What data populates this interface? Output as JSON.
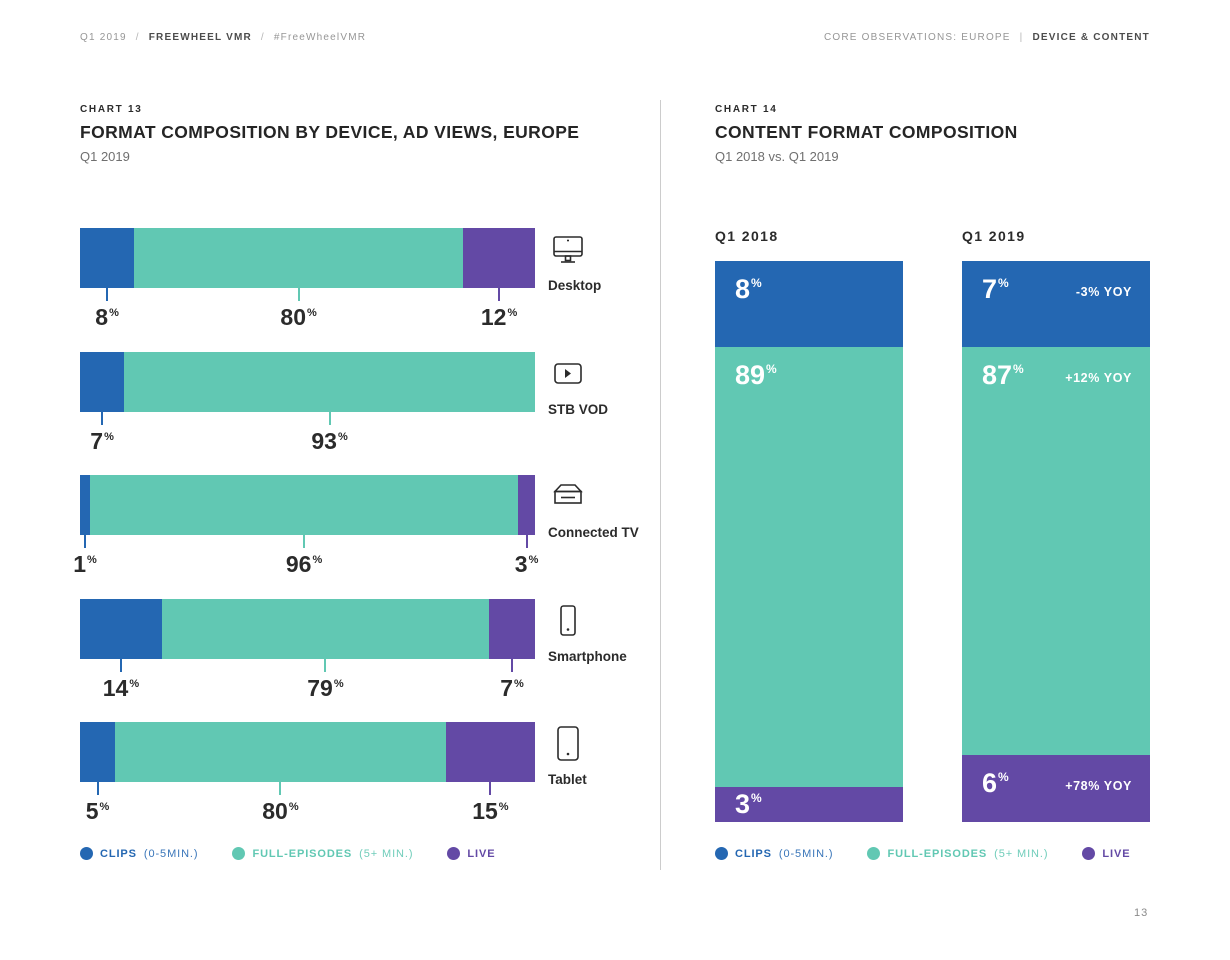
{
  "page": {
    "header_left": {
      "prefix": "Q1 2019",
      "sep1": "/",
      "brand": "FREEWHEEL VMR",
      "sep2": "/",
      "hashtag": "#FreeWheelVMR"
    },
    "header_right": {
      "section": "CORE OBSERVATIONS: EUROPE",
      "divider": "|",
      "subsection": "DEVICE & CONTENT"
    },
    "page_number": "13"
  },
  "colors": {
    "clips": "#2467b2",
    "full_episodes": "#61c8b3",
    "live": "#6349a5",
    "text_dark": "#2b2b2b",
    "text_gray": "#6f6f6f",
    "divider": "#cccccc"
  },
  "legend": [
    {
      "name": "clips",
      "label": "CLIPS",
      "detail": "(0-5MIN.)",
      "color": "#2467b2"
    },
    {
      "name": "full-episodes",
      "label": "FULL-EPISODES",
      "detail": "(5+ MIN.)",
      "color": "#61c8b3"
    },
    {
      "name": "live",
      "label": "LIVE",
      "detail": "",
      "color": "#6349a5"
    }
  ],
  "chart13": {
    "chart_label": "CHART 13",
    "title": "FORMAT COMPOSITION BY DEVICE, AD VIEWS, EUROPE",
    "subtitle": "Q1 2019",
    "unit": "%",
    "rows": [
      {
        "device": "Desktop",
        "icon": "desktop-icon",
        "segments": [
          {
            "series": "clips",
            "value": 8,
            "display_pct": 11.9
          },
          {
            "series": "full_episodes",
            "value": 80,
            "display_pct": 72.3
          },
          {
            "series": "live",
            "value": 12,
            "display_pct": 15.8
          }
        ]
      },
      {
        "device": "STB VOD",
        "icon": "stb-vod-icon",
        "segments": [
          {
            "series": "clips",
            "value": 7,
            "display_pct": 9.7
          },
          {
            "series": "full_episodes",
            "value": 93,
            "display_pct": 90.3
          }
        ]
      },
      {
        "device": "Connected TV",
        "icon": "connected-tv-icon",
        "segments": [
          {
            "series": "clips",
            "value": 1,
            "display_pct": 2.2
          },
          {
            "series": "full_episodes",
            "value": 96,
            "display_pct": 94.1
          },
          {
            "series": "live",
            "value": 3,
            "display_pct": 3.7
          }
        ]
      },
      {
        "device": "Smartphone",
        "icon": "smartphone-icon",
        "segments": [
          {
            "series": "clips",
            "value": 14,
            "display_pct": 18.0
          },
          {
            "series": "full_episodes",
            "value": 79,
            "display_pct": 71.9
          },
          {
            "series": "live",
            "value": 7,
            "display_pct": 10.1
          }
        ]
      },
      {
        "device": "Tablet",
        "icon": "tablet-icon",
        "segments": [
          {
            "series": "clips",
            "value": 5,
            "display_pct": 7.7
          },
          {
            "series": "full_episodes",
            "value": 80,
            "display_pct": 72.7
          },
          {
            "series": "live",
            "value": 15,
            "display_pct": 19.6
          }
        ]
      }
    ]
  },
  "chart14": {
    "chart_label": "CHART 14",
    "title": "CONTENT FORMAT COMPOSITION",
    "subtitle": "Q1 2018 vs. Q1 2019",
    "unit": "%",
    "columns": [
      {
        "header": "Q1 2018",
        "segments": [
          {
            "series": "clips",
            "value": 8,
            "yoy": "",
            "display_pct": 15.3
          },
          {
            "series": "full_episodes",
            "value": 89,
            "yoy": "",
            "display_pct": 78.4
          },
          {
            "series": "live",
            "value": 3,
            "yoy": "",
            "display_pct": 6.3
          }
        ]
      },
      {
        "header": "Q1 2019",
        "segments": [
          {
            "series": "clips",
            "value": 7,
            "yoy": "-3% YOY",
            "display_pct": 15.3
          },
          {
            "series": "full_episodes",
            "value": 87,
            "yoy": "+12% YOY",
            "display_pct": 72.7
          },
          {
            "series": "live",
            "value": 6,
            "yoy": "+78% YOY",
            "display_pct": 12.0
          }
        ]
      }
    ]
  },
  "chart_data": [
    {
      "type": "bar",
      "orientation": "horizontal",
      "stacked": true,
      "title": "FORMAT COMPOSITION BY DEVICE, AD VIEWS, EUROPE",
      "subtitle": "Q1 2019",
      "categories": [
        "Desktop",
        "STB VOD",
        "Connected TV",
        "Smartphone",
        "Tablet"
      ],
      "series": [
        {
          "name": "CLIPS (0-5MIN.)",
          "color": "#2467b2",
          "values": [
            8,
            7,
            1,
            14,
            5
          ]
        },
        {
          "name": "FULL-EPISODES (5+ MIN.)",
          "color": "#61c8b3",
          "values": [
            80,
            93,
            96,
            79,
            80
          ]
        },
        {
          "name": "LIVE",
          "color": "#6349a5",
          "values": [
            12,
            0,
            3,
            7,
            15
          ]
        }
      ],
      "unit": "%",
      "xlim": [
        0,
        100
      ],
      "grid": false,
      "legend_position": "bottom"
    },
    {
      "type": "bar",
      "orientation": "vertical",
      "stacked": true,
      "title": "CONTENT FORMAT COMPOSITION",
      "subtitle": "Q1 2018 vs. Q1 2019",
      "categories": [
        "Q1 2018",
        "Q1 2019"
      ],
      "series": [
        {
          "name": "CLIPS (0-5MIN.)",
          "color": "#2467b2",
          "values": [
            8,
            7
          ]
        },
        {
          "name": "FULL-EPISODES (5+ MIN.)",
          "color": "#61c8b3",
          "values": [
            89,
            87
          ]
        },
        {
          "name": "LIVE",
          "color": "#6349a5",
          "values": [
            3,
            6
          ]
        }
      ],
      "annotations": {
        "Q1 2019": [
          "-3% YOY",
          "+12% YOY",
          "+78% YOY"
        ]
      },
      "unit": "%",
      "ylim": [
        0,
        100
      ],
      "grid": false,
      "legend_position": "bottom"
    }
  ]
}
